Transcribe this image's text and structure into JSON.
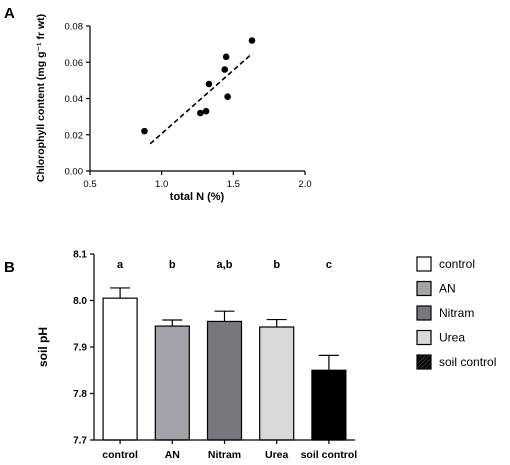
{
  "chart_data": [
    {
      "panel_label": "A",
      "type": "scatter",
      "title": "",
      "xlabel": "total N (%)",
      "ylabel": "Chlorophyll content (mg g⁻¹ fr wt)",
      "xlim": [
        0.5,
        2.0
      ],
      "ylim": [
        0.0,
        0.08
      ],
      "x_ticks": [
        "0.5",
        "1.0",
        "1.5",
        "2.0"
      ],
      "y_ticks": [
        "0.00",
        "0.02",
        "0.04",
        "0.06",
        "0.08"
      ],
      "grid": false,
      "points": [
        {
          "x": 0.88,
          "y": 0.022
        },
        {
          "x": 1.27,
          "y": 0.032
        },
        {
          "x": 1.31,
          "y": 0.033
        },
        {
          "x": 1.33,
          "y": 0.048
        },
        {
          "x": 1.44,
          "y": 0.056
        },
        {
          "x": 1.45,
          "y": 0.063
        },
        {
          "x": 1.46,
          "y": 0.041
        },
        {
          "x": 1.63,
          "y": 0.072
        }
      ],
      "trendline": {
        "style": "dashed",
        "x": [
          0.92,
          1.62
        ],
        "y": [
          0.015,
          0.064
        ]
      }
    },
    {
      "panel_label": "B",
      "type": "bar",
      "title": "",
      "xlabel": "",
      "ylabel": "soil pH",
      "ylim": [
        7.7,
        8.1
      ],
      "y_ticks": [
        "7.7",
        "7.8",
        "7.9",
        "8.0",
        "8.1"
      ],
      "categories": [
        "control",
        "AN",
        "Nitram",
        "Urea",
        "soil control"
      ],
      "values": [
        8.005,
        7.945,
        7.955,
        7.943,
        7.85
      ],
      "errors": [
        0.022,
        0.013,
        0.022,
        0.016,
        0.032
      ],
      "significance": [
        "a",
        "b",
        "a,b",
        "b",
        "c"
      ],
      "bar_colors": [
        "#ffffff",
        "#a3a3a9",
        "#77777d",
        "#d9d9d9",
        "#000000"
      ],
      "legend": {
        "placement": "right",
        "entries": [
          {
            "label": "control",
            "color": "#ffffff",
            "hatch": false
          },
          {
            "label": "AN",
            "color": "#a3a3a9",
            "hatch": false
          },
          {
            "label": "Nitram",
            "color": "#77777d",
            "hatch": false
          },
          {
            "label": "Urea",
            "color": "#d9d9d9",
            "hatch": false
          },
          {
            "label": "soil control",
            "color": "#000000",
            "hatch": true
          }
        ]
      }
    }
  ]
}
